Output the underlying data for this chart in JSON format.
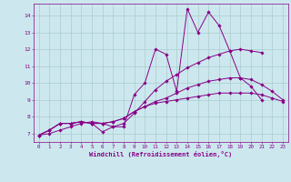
{
  "xlabel": "Windchill (Refroidissement éolien,°C)",
  "background_color": "#cce8ee",
  "line_color": "#880088",
  "grid_color": "#aacccc",
  "xmin": -0.5,
  "xmax": 23.5,
  "ymin": 6.5,
  "ymax": 14.7,
  "yticks": [
    7,
    8,
    9,
    10,
    11,
    12,
    13,
    14
  ],
  "xticks": [
    0,
    1,
    2,
    3,
    4,
    5,
    6,
    7,
    8,
    9,
    10,
    11,
    12,
    13,
    14,
    15,
    16,
    17,
    18,
    19,
    20,
    21,
    22,
    23
  ],
  "series": [
    [
      6.9,
      7.2,
      7.6,
      7.6,
      7.7,
      7.6,
      7.1,
      7.4,
      7.4,
      9.3,
      10.0,
      12.0,
      11.7,
      9.5,
      14.4,
      13.0,
      14.2,
      13.4,
      11.9,
      10.3,
      9.8,
      9.0,
      null,
      null
    ],
    [
      6.9,
      7.2,
      7.6,
      7.6,
      7.7,
      7.6,
      7.6,
      7.7,
      7.9,
      8.3,
      8.6,
      8.9,
      9.1,
      9.4,
      9.7,
      9.9,
      10.1,
      10.2,
      10.3,
      10.3,
      10.2,
      9.9,
      9.5,
      9.0
    ],
    [
      6.9,
      7.0,
      7.2,
      7.4,
      7.6,
      7.7,
      7.6,
      7.4,
      7.6,
      8.2,
      8.9,
      9.6,
      10.1,
      10.5,
      10.9,
      11.2,
      11.5,
      11.7,
      11.9,
      12.0,
      11.9,
      11.8,
      null,
      null
    ],
    [
      6.9,
      7.2,
      7.6,
      7.6,
      7.7,
      7.6,
      7.6,
      7.7,
      7.9,
      8.3,
      8.6,
      8.8,
      8.9,
      9.0,
      9.1,
      9.2,
      9.3,
      9.4,
      9.4,
      9.4,
      9.4,
      9.3,
      9.1,
      8.9
    ]
  ]
}
